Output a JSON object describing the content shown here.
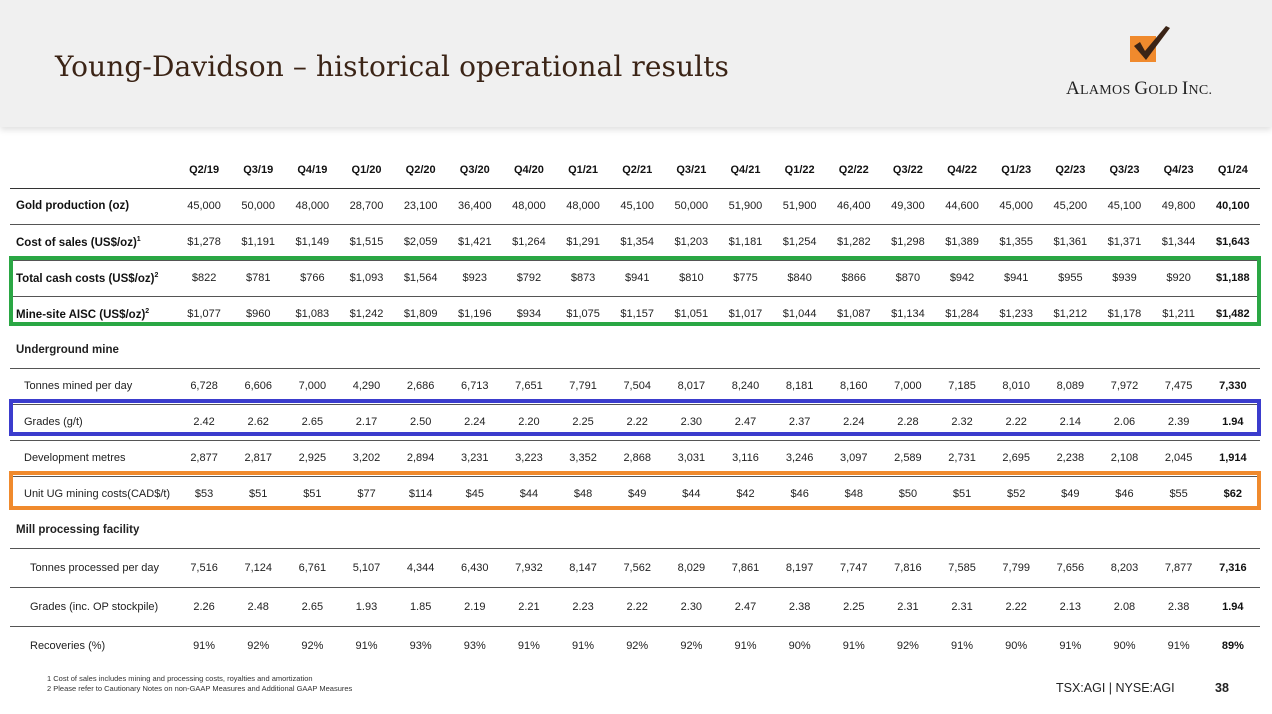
{
  "title": "Young-Davidson – historical operational results",
  "logo": {
    "text_big_1": "A",
    "text_small_1": "LAMOS ",
    "text_big_2": "G",
    "text_small_2": "OLD ",
    "text_big_3": "I",
    "text_small_3": "NC.",
    "icon": "alamos-checkmark-logo-icon",
    "colors": {
      "orange": "#f08a2d",
      "dark": "#3b2416"
    }
  },
  "table": {
    "columns": [
      "Q2/19",
      "Q3/19",
      "Q4/19",
      "Q1/20",
      "Q2/20",
      "Q3/20",
      "Q4/20",
      "Q1/21",
      "Q2/21",
      "Q3/21",
      "Q4/21",
      "Q1/22",
      "Q2/22",
      "Q3/22",
      "Q4/22",
      "Q1/23",
      "Q2/23",
      "Q3/23",
      "Q4/23",
      "Q1/24"
    ],
    "rows": [
      {
        "label": "Gold production (oz)",
        "sup": "",
        "style": "bold",
        "values": [
          "45,000",
          "50,000",
          "48,000",
          "28,700",
          "23,100",
          "36,400",
          "48,000",
          "48,000",
          "45,100",
          "50,000",
          "51,900",
          "51,900",
          "46,400",
          "49,300",
          "44,600",
          "45,000",
          "45,200",
          "45,100",
          "49,800",
          "40,100"
        ]
      },
      {
        "label": "Cost of sales (US$/oz)",
        "sup": "1",
        "style": "bold",
        "values": [
          "$1,278",
          "$1,191",
          "$1,149",
          "$1,515",
          "$2,059",
          "$1,421",
          "$1,264",
          "$1,291",
          "$1,354",
          "$1,203",
          "$1,181",
          "$1,254",
          "$1,282",
          "$1,298",
          "$1,389",
          "$1,355",
          "$1,361",
          "$1,371",
          "$1,344",
          "$1,643"
        ]
      },
      {
        "label": "Total cash costs (US$/oz)",
        "sup": "2",
        "style": "bold",
        "values": [
          "$822",
          "$781",
          "$766",
          "$1,093",
          "$1,564",
          "$923",
          "$792",
          "$873",
          "$941",
          "$810",
          "$775",
          "$840",
          "$866",
          "$870",
          "$942",
          "$941",
          "$955",
          "$939",
          "$920",
          "$1,188"
        ]
      },
      {
        "label": "Mine-site AISC (US$/oz)",
        "sup": "2",
        "style": "bold",
        "values": [
          "$1,077",
          "$960",
          "$1,083",
          "$1,242",
          "$1,809",
          "$1,196",
          "$934",
          "$1,075",
          "$1,157",
          "$1,051",
          "$1,017",
          "$1,044",
          "$1,087",
          "$1,134",
          "$1,284",
          "$1,233",
          "$1,212",
          "$1,178",
          "$1,211",
          "$1,482"
        ]
      }
    ],
    "section_underground": "Underground mine",
    "underground_rows": [
      {
        "label": "Tonnes mined per day",
        "values": [
          "6,728",
          "6,606",
          "7,000",
          "4,290",
          "2,686",
          "6,713",
          "7,651",
          "7,791",
          "7,504",
          "8,017",
          "8,240",
          "8,181",
          "8,160",
          "7,000",
          "7,185",
          "8,010",
          "8,089",
          "7,972",
          "7,475",
          "7,330"
        ]
      },
      {
        "label": "Grades (g/t)",
        "values": [
          "2.42",
          "2.62",
          "2.65",
          "2.17",
          "2.50",
          "2.24",
          "2.20",
          "2.25",
          "2.22",
          "2.30",
          "2.47",
          "2.37",
          "2.24",
          "2.28",
          "2.32",
          "2.22",
          "2.14",
          "2.06",
          "2.39",
          "1.94"
        ]
      },
      {
        "label": "Development metres",
        "values": [
          "2,877",
          "2,817",
          "2,925",
          "3,202",
          "2,894",
          "3,231",
          "3,223",
          "3,352",
          "2,868",
          "3,031",
          "3,116",
          "3,246",
          "3,097",
          "2,589",
          "2,731",
          "2,695",
          "2,238",
          "2,108",
          "2,045",
          "1,914"
        ]
      },
      {
        "label": "Unit UG mining costs(CAD$/t)",
        "values": [
          "$53",
          "$51",
          "$51",
          "$77",
          "$114",
          "$45",
          "$44",
          "$48",
          "$49",
          "$44",
          "$42",
          "$46",
          "$48",
          "$50",
          "$51",
          "$52",
          "$49",
          "$46",
          "$55",
          "$62"
        ]
      }
    ],
    "section_mill": "Mill processing facility",
    "mill_rows": [
      {
        "label": "Tonnes processed per day",
        "values": [
          "7,516",
          "7,124",
          "6,761",
          "5,107",
          "4,344",
          "6,430",
          "7,932",
          "8,147",
          "7,562",
          "8,029",
          "7,861",
          "8,197",
          "7,747",
          "7,816",
          "7,585",
          "7,799",
          "7,656",
          "8,203",
          "7,877",
          "7,316"
        ]
      },
      {
        "label": "Grades (inc. OP stockpile)",
        "values": [
          "2.26",
          "2.48",
          "2.65",
          "1.93",
          "1.85",
          "2.19",
          "2.21",
          "2.23",
          "2.22",
          "2.30",
          "2.47",
          "2.38",
          "2.25",
          "2.31",
          "2.31",
          "2.22",
          "2.13",
          "2.08",
          "2.38",
          "1.94"
        ]
      },
      {
        "label": "Recoveries (%)",
        "values": [
          "91%",
          "92%",
          "92%",
          "91%",
          "93%",
          "93%",
          "91%",
          "91%",
          "92%",
          "92%",
          "91%",
          "90%",
          "91%",
          "92%",
          "91%",
          "90%",
          "91%",
          "90%",
          "91%",
          "89%"
        ]
      }
    ]
  },
  "highlight_colors": {
    "green": "#2aa744",
    "blue": "#3b3ccd",
    "orange": "#f08a2d"
  },
  "footnotes": [
    "1  Cost of sales includes mining and processing costs, royalties and amortization",
    "2  Please refer to Cautionary Notes on non-GAAP Measures and Additional GAAP Measures"
  ],
  "footer": {
    "tickers": "TSX:AGI  |  NYSE:AGI",
    "page": "38"
  }
}
